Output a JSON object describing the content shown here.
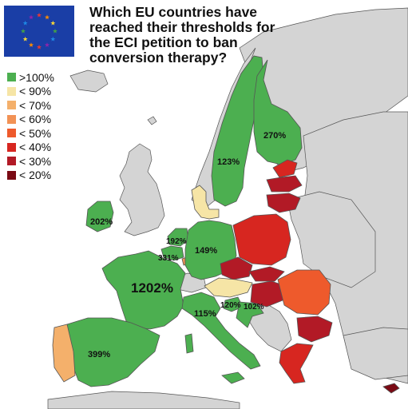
{
  "title": "Which EU countries have reached their thresholds for the ECI petition to ban conversion therapy?",
  "legend": [
    {
      "label": ">100%",
      "color": "#4caf50"
    },
    {
      "label": "< 90%",
      "color": "#f6e5a6"
    },
    {
      "label": "< 70%",
      "color": "#f4b06b"
    },
    {
      "label": "< 60%",
      "color": "#f29255"
    },
    {
      "label": "< 50%",
      "color": "#ee5a2c"
    },
    {
      "label": "< 40%",
      "color": "#d72620"
    },
    {
      "label": "< 30%",
      "color": "#b21a26"
    },
    {
      "label": "< 20%",
      "color": "#7a0a14"
    }
  ],
  "country_labels": {
    "sweden": "123%",
    "finland": "270%",
    "ireland": "202%",
    "netherlands": "192%",
    "belgium": "331%",
    "germany": "149%",
    "france": "1202%",
    "italy": "115%",
    "slovenia": "120%",
    "croatia": "102%",
    "spain": "399%"
  },
  "colors": {
    "sea": "#ffffff",
    "non_eu": "#d4d4d4",
    "border": "#555555",
    "flag_blue": "#1a3ea6"
  }
}
